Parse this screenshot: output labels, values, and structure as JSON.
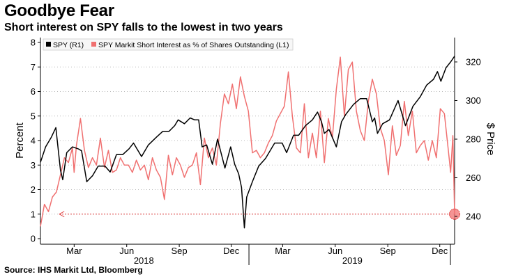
{
  "header": {
    "title": "Goodbye Fear",
    "subtitle": "Short interest on SPY falls to the lowest in two years"
  },
  "footer": {
    "source": "Source: IHS Markit Ltd, Bloomberg"
  },
  "colors": {
    "spy_line": "#000000",
    "short_interest_line": "#f07070",
    "marker": "#f07070",
    "arrow": "#e03a3a",
    "grid": "#bbbbbb"
  },
  "chart_data": {
    "type": "line",
    "title": "Goodbye Fear",
    "subtitle": "Short interest on SPY falls to the lowest in two years",
    "left_axis": {
      "label": "Percent",
      "ticks": [
        0,
        1,
        2,
        3,
        4,
        5,
        6,
        7,
        8
      ],
      "range": [
        0,
        8
      ]
    },
    "right_axis": {
      "label": "$ Price",
      "ticks": [
        240,
        260,
        280,
        300,
        320
      ],
      "range": [
        227,
        330
      ]
    },
    "x_axis": {
      "range": [
        "2018-01-01",
        "2019-12-27"
      ],
      "tick_labels": [
        {
          "label": "Mar",
          "date": "2018-03-01"
        },
        {
          "label": "Jun",
          "date": "2018-06-01"
        },
        {
          "label": "Sep",
          "date": "2018-09-01"
        },
        {
          "label": "Dec",
          "date": "2018-12-01"
        },
        {
          "label": "Mar",
          "date": "2019-03-01"
        },
        {
          "label": "Jun",
          "date": "2019-06-01"
        },
        {
          "label": "Sep",
          "date": "2019-09-01"
        },
        {
          "label": "Dec",
          "date": "2019-12-01"
        }
      ],
      "year_labels": [
        {
          "label": "2018",
          "date": "2018-07-01"
        },
        {
          "label": "2019",
          "date": "2019-07-01"
        }
      ],
      "year_dividers": [
        "2019-01-01",
        "2020-01-01"
      ]
    },
    "grid": "horizontal dotted",
    "legend_position": "top-left",
    "series": [
      {
        "name": "SPY (R1)",
        "axis": "right",
        "x": [
          "2018-01-01",
          "2018-01-10",
          "2018-01-20",
          "2018-01-28",
          "2018-02-05",
          "2018-02-09",
          "2018-02-16",
          "2018-02-26",
          "2018-03-08",
          "2018-03-14",
          "2018-03-23",
          "2018-04-02",
          "2018-04-12",
          "2018-04-24",
          "2018-05-03",
          "2018-05-14",
          "2018-05-25",
          "2018-06-05",
          "2018-06-13",
          "2018-06-27",
          "2018-07-09",
          "2018-07-23",
          "2018-08-03",
          "2018-08-14",
          "2018-08-24",
          "2018-08-30",
          "2018-09-10",
          "2018-09-20",
          "2018-09-28",
          "2018-10-05",
          "2018-10-11",
          "2018-10-19",
          "2018-10-29",
          "2018-11-07",
          "2018-11-20",
          "2018-11-30",
          "2018-12-07",
          "2018-12-14",
          "2018-12-19",
          "2018-12-24",
          "2018-12-28",
          "2019-01-07",
          "2019-01-18",
          "2019-01-30",
          "2019-02-15",
          "2019-02-28",
          "2019-03-08",
          "2019-03-20",
          "2019-03-29",
          "2019-04-10",
          "2019-04-22",
          "2019-05-01",
          "2019-05-08",
          "2019-05-13",
          "2019-05-21",
          "2019-06-03",
          "2019-06-12",
          "2019-06-20",
          "2019-07-03",
          "2019-07-15",
          "2019-07-26",
          "2019-08-05",
          "2019-08-09",
          "2019-08-14",
          "2019-08-23",
          "2019-09-04",
          "2019-09-19",
          "2019-10-02",
          "2019-10-15",
          "2019-10-28",
          "2019-11-08",
          "2019-11-20",
          "2019-11-27",
          "2019-12-03",
          "2019-12-12",
          "2019-12-20",
          "2019-12-27"
        ],
        "y": [
          268,
          276,
          281,
          286,
          264,
          259,
          273,
          276,
          275,
          274,
          258,
          261,
          266,
          266,
          263,
          272,
          272,
          275,
          278,
          271,
          277,
          281,
          284,
          284,
          287,
          290,
          288,
          291,
          290,
          290,
          276,
          277,
          267,
          280,
          265,
          276,
          267,
          262,
          255,
          234,
          250,
          258,
          266,
          270,
          278,
          278,
          273,
          282,
          282,
          287,
          290,
          294,
          289,
          283,
          285,
          276,
          289,
          293,
          298,
          301,
          301,
          289,
          291,
          283,
          288,
          290,
          300,
          287,
          297,
          302,
          308,
          311,
          315,
          310,
          317,
          320,
          323
        ]
      },
      {
        "name": "SPY Markit Short Interest as % of Shares Outstanding (L1)",
        "axis": "left",
        "x": [
          "2018-01-01",
          "2018-01-08",
          "2018-01-15",
          "2018-01-22",
          "2018-01-29",
          "2018-02-05",
          "2018-02-12",
          "2018-02-19",
          "2018-02-26",
          "2018-03-01",
          "2018-03-05",
          "2018-03-12",
          "2018-03-19",
          "2018-03-26",
          "2018-04-02",
          "2018-04-09",
          "2018-04-16",
          "2018-04-23",
          "2018-04-30",
          "2018-05-07",
          "2018-05-14",
          "2018-05-21",
          "2018-05-28",
          "2018-06-04",
          "2018-06-11",
          "2018-06-18",
          "2018-06-25",
          "2018-07-02",
          "2018-07-09",
          "2018-07-16",
          "2018-07-23",
          "2018-07-30",
          "2018-08-06",
          "2018-08-13",
          "2018-08-20",
          "2018-08-27",
          "2018-09-03",
          "2018-09-10",
          "2018-09-17",
          "2018-09-24",
          "2018-10-01",
          "2018-10-08",
          "2018-10-15",
          "2018-10-22",
          "2018-10-29",
          "2018-11-05",
          "2018-11-12",
          "2018-11-19",
          "2018-11-26",
          "2018-12-03",
          "2018-12-10",
          "2018-12-17",
          "2018-12-24",
          "2018-12-31",
          "2019-01-07",
          "2019-01-14",
          "2019-01-21",
          "2019-01-28",
          "2019-02-04",
          "2019-02-11",
          "2019-02-18",
          "2019-02-25",
          "2019-03-04",
          "2019-03-11",
          "2019-03-18",
          "2019-03-25",
          "2019-04-01",
          "2019-04-08",
          "2019-04-15",
          "2019-04-22",
          "2019-04-29",
          "2019-05-06",
          "2019-05-13",
          "2019-05-20",
          "2019-05-27",
          "2019-06-03",
          "2019-06-10",
          "2019-06-17",
          "2019-06-24",
          "2019-07-01",
          "2019-07-08",
          "2019-07-15",
          "2019-07-22",
          "2019-07-29",
          "2019-08-05",
          "2019-08-12",
          "2019-08-19",
          "2019-08-26",
          "2019-09-02",
          "2019-09-09",
          "2019-09-16",
          "2019-09-23",
          "2019-09-30",
          "2019-10-07",
          "2019-10-14",
          "2019-10-21",
          "2019-10-28",
          "2019-11-04",
          "2019-11-11",
          "2019-11-18",
          "2019-11-25",
          "2019-12-02",
          "2019-12-09",
          "2019-12-16",
          "2019-12-20",
          "2019-12-24",
          "2019-12-27"
        ],
        "y": [
          0.5,
          1.4,
          1.1,
          1.7,
          1.9,
          2.6,
          3.3,
          3.1,
          3.7,
          2.7,
          3.8,
          4.9,
          3.6,
          2.9,
          3.3,
          3.0,
          4.1,
          2.9,
          3.6,
          2.7,
          2.8,
          3.3,
          3.0,
          3.0,
          2.7,
          3.2,
          2.8,
          3.0,
          2.4,
          3.3,
          2.8,
          2.5,
          1.6,
          3.4,
          2.6,
          3.3,
          3.0,
          2.5,
          2.9,
          3.0,
          3.5,
          2.2,
          4.1,
          3.3,
          3.7,
          3.0,
          4.7,
          5.9,
          5.5,
          6.3,
          5.3,
          6.6,
          5.8,
          5.2,
          3.5,
          3.6,
          3.3,
          3.5,
          3.9,
          4.2,
          4.8,
          5.1,
          5.4,
          6.8,
          5.0,
          3.7,
          3.5,
          5.5,
          3.3,
          4.3,
          3.3,
          5.2,
          3.1,
          4.9,
          4.1,
          6.1,
          7.4,
          5.0,
          6.9,
          7.2,
          5.2,
          4.4,
          4.0,
          5.6,
          6.5,
          5.9,
          4.5,
          4.0,
          2.6,
          4.6,
          3.4,
          3.8,
          5.6,
          4.2,
          5.2,
          3.5,
          3.8,
          4.0,
          3.2,
          4.0,
          3.3,
          5.3,
          5.1,
          3.6,
          2.7,
          4.2,
          1.0
        ]
      }
    ],
    "annotations": [
      {
        "type": "arrow",
        "from": "2019-12-27",
        "to": "2018-01-22",
        "y": 1.0,
        "axis": "left"
      },
      {
        "type": "circle",
        "date": "2019-12-27",
        "y": 1.0,
        "axis": "left"
      }
    ]
  }
}
